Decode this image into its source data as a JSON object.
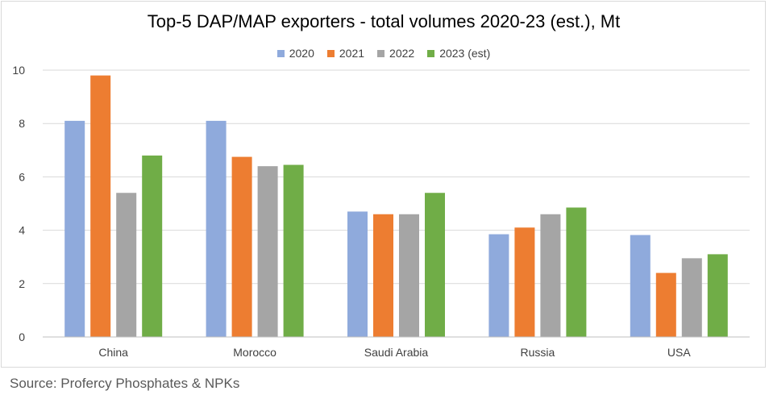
{
  "chart_data": {
    "type": "bar",
    "title": "Top-5 DAP/MAP exporters - total volumes 2020-23 (est.), Mt",
    "xlabel": "",
    "ylabel": "",
    "categories": [
      "China",
      "Morocco",
      "Saudi Arabia",
      "Russia",
      "USA"
    ],
    "ylim": [
      0,
      10
    ],
    "yticks": [
      0,
      2,
      4,
      6,
      8,
      10
    ],
    "grid": true,
    "legend_position": "top",
    "series": [
      {
        "name": "2020",
        "color": "#8faadc",
        "values": [
          8.1,
          8.1,
          4.7,
          3.85,
          3.82
        ]
      },
      {
        "name": "2021",
        "color": "#ed7d31",
        "values": [
          9.8,
          6.75,
          4.6,
          4.1,
          2.4
        ]
      },
      {
        "name": "2022",
        "color": "#a5a5a5",
        "values": [
          5.4,
          6.4,
          4.6,
          4.6,
          2.95
        ]
      },
      {
        "name": "2023 (est)",
        "color": "#70ad47",
        "values": [
          6.8,
          6.45,
          5.4,
          4.85,
          3.1
        ]
      }
    ]
  },
  "source": "Source: Profercy Phosphates & NPKs"
}
